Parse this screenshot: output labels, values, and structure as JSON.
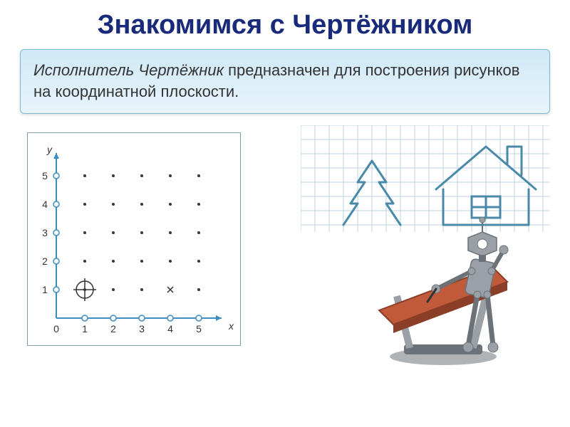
{
  "title": "Знакомимся с Чертёжником",
  "info": {
    "emphasis": "Исполнитель Чертёжник",
    "rest": " предназначен для построения рисунков на координатной плоскости."
  },
  "coord_grid": {
    "type": "scatter",
    "axis_color": "#3a8fc0",
    "point_color": "#333333",
    "tick_color": "#ffffff",
    "tick_border": "#3a8fc0",
    "xlim": [
      0,
      6
    ],
    "ylim": [
      0,
      6
    ],
    "xticks": [
      0,
      1,
      2,
      3,
      4,
      5
    ],
    "yticks": [
      1,
      2,
      3,
      4,
      5
    ],
    "xlabel": "x",
    "ylabel": "y",
    "label_color": "#333333",
    "label_fontsize": 14,
    "dot_radius": 2,
    "open_circle_radius": 4,
    "points": [
      [
        1,
        1
      ],
      [
        2,
        1
      ],
      [
        3,
        1
      ],
      [
        5,
        1
      ],
      [
        1,
        2
      ],
      [
        2,
        2
      ],
      [
        3,
        2
      ],
      [
        4,
        2
      ],
      [
        5,
        2
      ],
      [
        1,
        3
      ],
      [
        2,
        3
      ],
      [
        3,
        3
      ],
      [
        4,
        3
      ],
      [
        5,
        3
      ],
      [
        1,
        4
      ],
      [
        2,
        4
      ],
      [
        3,
        4
      ],
      [
        4,
        4
      ],
      [
        5,
        4
      ],
      [
        1,
        5
      ],
      [
        2,
        5
      ],
      [
        3,
        5
      ],
      [
        4,
        5
      ],
      [
        5,
        5
      ]
    ],
    "x_mark": [
      4,
      1
    ],
    "origin_marker": [
      1,
      1
    ],
    "origin_marker_radius": 12
  },
  "doodle": {
    "type": "line-drawing",
    "grid_color": "#bcd4e0",
    "line_color": "#4a8aa8",
    "line_width": 3,
    "grid_step": 20,
    "tree": {
      "points": [
        [
          60,
          140
        ],
        [
          80,
          110
        ],
        [
          70,
          110
        ],
        [
          90,
          80
        ],
        [
          80,
          80
        ],
        [
          100,
          50
        ],
        [
          120,
          80
        ],
        [
          110,
          80
        ],
        [
          130,
          110
        ],
        [
          120,
          110
        ],
        [
          140,
          140
        ]
      ]
    },
    "house": {
      "roof": [
        [
          190,
          90
        ],
        [
          260,
          30
        ],
        [
          330,
          90
        ]
      ],
      "body": [
        [
          200,
          90
        ],
        [
          200,
          140
        ],
        [
          320,
          140
        ],
        [
          320,
          90
        ]
      ],
      "window": [
        [
          240,
          100
        ],
        [
          280,
          100
        ],
        [
          280,
          130
        ],
        [
          240,
          130
        ]
      ],
      "window_cross_h": [
        [
          240,
          115
        ],
        [
          280,
          115
        ]
      ],
      "window_cross_v": [
        [
          260,
          100
        ],
        [
          260,
          130
        ]
      ],
      "chimney": [
        [
          290,
          55
        ],
        [
          290,
          30
        ],
        [
          310,
          30
        ],
        [
          310,
          70
        ]
      ]
    }
  },
  "robot": {
    "type": "illustration",
    "metal_color": "#9aa0a6",
    "metal_dark": "#6b7278",
    "board_color": "#c05a3a",
    "board_dark": "#8a3e28",
    "base_color": "#7a8086"
  }
}
